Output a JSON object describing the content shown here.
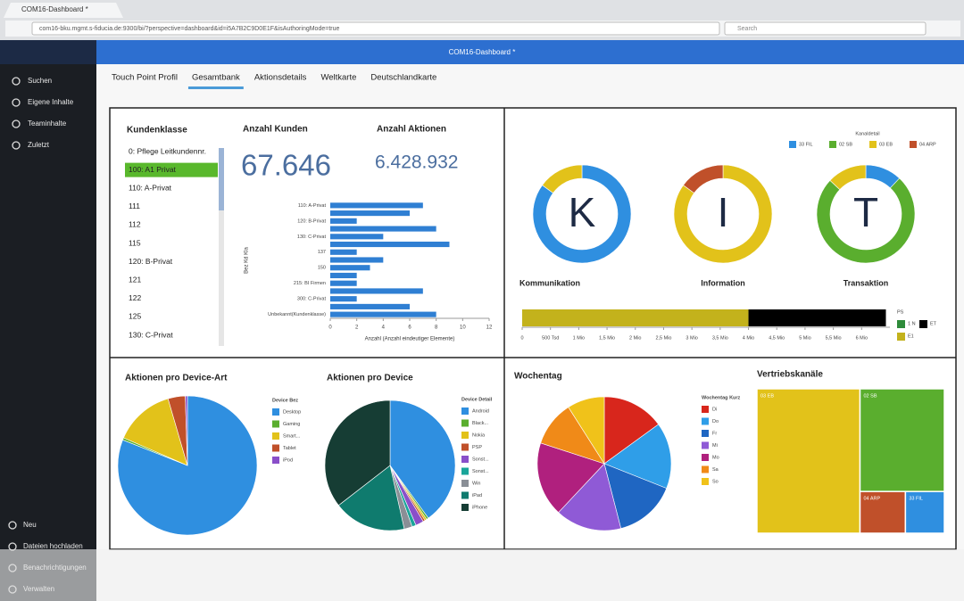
{
  "browser": {
    "tab": "COM16-Dashboard *",
    "url": "com16-bku.mgmt.s-fiducia.de:9300/bi/?perspective=dashboard&id=i5A7B2C9D0E1F&isAuthoringMode=true",
    "search": "Search"
  },
  "app": {
    "title": "COM16-Dashboard *"
  },
  "sidebar": {
    "top": [
      "Suchen",
      "Eigene Inhalte",
      "Teaminhalte",
      "Zuletzt"
    ],
    "bottom": [
      "Neu",
      "Dateien hochladen",
      "Benachrichtigungen",
      "Verwalten"
    ]
  },
  "tabs": {
    "items": [
      "Touch Point Profil",
      "Gesamtbank",
      "Aktionsdetails",
      "Weltkarte",
      "Deutschlandkarte"
    ],
    "active": 1
  },
  "kundenklasse": {
    "title": "Kundenklasse",
    "items": [
      "0: Pflege Leitkundennr.",
      "100: A1 Privat",
      "110: A-Privat",
      "111",
      "112",
      "115",
      "120: B-Privat",
      "121",
      "122",
      "125",
      "130: C-Privat"
    ],
    "selected": 1
  },
  "kpis": [
    {
      "label": "Anzahl Kunden",
      "value": "67.646"
    },
    {
      "label": "Anzahl Aktionen",
      "value": "6.428.932"
    }
  ],
  "bar_chart": {
    "type": "bar",
    "categories": [
      "110: A-Privat",
      null,
      "120: B-Privat",
      null,
      "130: C-Privat",
      null,
      "137",
      null,
      "150",
      null,
      "215: BI Firmen",
      null,
      "300: C-Privat",
      null,
      "Unbekannt(Kundenklasse)"
    ],
    "values": [
      7,
      6,
      2,
      8,
      4,
      9,
      2,
      4,
      3,
      2,
      2,
      7,
      2,
      6,
      8
    ],
    "color": "#2f7fd3",
    "xlim": [
      0,
      12
    ],
    "xticks": [
      0,
      2,
      4,
      6,
      8,
      10,
      12
    ],
    "x_label": "Anzahl (Anzahl eindeutiger Elemente)",
    "y_label": "Bez Kd Kla"
  },
  "kit": {
    "legend_title": "Kanaldetail",
    "legend": [
      "33 FIL",
      "02 SB",
      "03 EB",
      "04 ARP"
    ],
    "legend_colors": [
      "#2f8fe0",
      "#5aae2e",
      "#e2c21a",
      "#c0502a"
    ],
    "donuts": [
      {
        "letter": "K",
        "label": "Kommunikation",
        "values": [
          85,
          15
        ],
        "colors": [
          "#2f8fe0",
          "#e2c21a"
        ]
      },
      {
        "letter": "I",
        "label": "Information",
        "values": [
          85,
          15
        ],
        "colors": [
          "#e2c21a",
          "#c0502a"
        ]
      },
      {
        "letter": "T",
        "label": "Transaktion",
        "values": [
          12,
          75,
          13
        ],
        "colors": [
          "#2f8fe0",
          "#5aae2e",
          "#e2c21a"
        ]
      }
    ]
  },
  "progress": {
    "type": "bar",
    "values": [
      4000000,
      2428932
    ],
    "colors": [
      "#c3b21c",
      "#000000"
    ],
    "xlim": [
      0,
      6500000
    ],
    "xticks": [
      0,
      {
        "value": 500000,
        "label": "500 Tsd"
      },
      {
        "value": 1000000,
        "label": "1 Mio"
      },
      {
        "value": 1500000,
        "label": "1,5 Mio"
      },
      {
        "value": 2000000,
        "label": "2 Mio"
      },
      {
        "value": 2500000,
        "label": "2,5 Mio"
      },
      {
        "value": 3000000,
        "label": "3 Mio"
      },
      {
        "value": 3500000,
        "label": "3,5 Mio"
      },
      {
        "value": 4000000,
        "label": "4 Mio"
      },
      {
        "value": 4500000,
        "label": "4,5 Mio"
      },
      {
        "value": 5000000,
        "label": "5 Mio"
      },
      {
        "value": 5500000,
        "label": "5,5 Mio"
      },
      {
        "value": 6000000,
        "label": "6 Mio"
      }
    ],
    "legend_title": "PS",
    "legend": [
      "1 N",
      "ET",
      "E1"
    ],
    "legend_colors": [
      "#2e8b3a",
      "#000000",
      "#c3b21c"
    ]
  },
  "device_art": {
    "type": "pie",
    "title": "Aktionen pro Device-Art",
    "legend_title": "Device Bez",
    "categories": [
      "Desktop",
      "Gaming",
      "Smart...",
      "Tablet",
      "iPod"
    ],
    "colors": [
      "#2f8fe0",
      "#5aae2e",
      "#e2c21a",
      "#c0502a",
      "#8a4fc9"
    ],
    "values": [
      81,
      0.5,
      14,
      4,
      0.5
    ]
  },
  "device": {
    "type": "pie",
    "title": "Aktionen pro Device",
    "legend_title": "Device Detail",
    "categories": [
      "Android",
      "Black...",
      "Nokia",
      "PSP",
      "Sonst...",
      "Sonst...",
      "Win",
      "iPad",
      "iPhone"
    ],
    "colors": [
      "#2f8fe0",
      "#5aae2e",
      "#e2c21a",
      "#c0502a",
      "#8a4fc9",
      "#1aa59a",
      "#8a8f96",
      "#0f7b6e",
      "#163d34"
    ],
    "values": [
      40,
      0.5,
      0.5,
      0.5,
      2,
      1,
      2,
      18,
      35.5
    ]
  },
  "wochentag": {
    "type": "pie",
    "title": "Wochentag",
    "legend_title": "Wochentag Kurz",
    "categories": [
      "Di",
      "Do",
      "Fr",
      "Mi",
      "Mo",
      "Sa",
      "So"
    ],
    "colors": [
      "#d8261c",
      "#2f9ee8",
      "#1f66c2",
      "#8f5ad6",
      "#b0207e",
      "#f08a18",
      "#f0c21a"
    ],
    "values": [
      15,
      16,
      15,
      16,
      18,
      11,
      9
    ]
  },
  "vertrieb": {
    "type": "treemap",
    "title": "Vertriebskanäle",
    "categories": [
      "03 EB",
      "02 SB",
      "04 ARP",
      "33 FIL"
    ],
    "colors": [
      "#e2c21a",
      "#5aae2e",
      "#c0502a",
      "#2f8fe0"
    ],
    "values": [
      55,
      32,
      7,
      6
    ]
  }
}
